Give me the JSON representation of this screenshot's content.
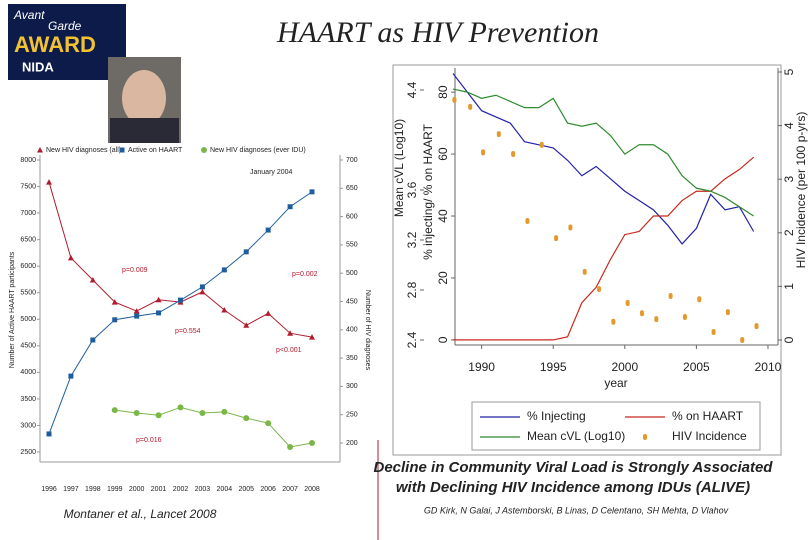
{
  "title": "HAART as HIV Prevention",
  "logo": {
    "line1": "Avant",
    "line2": "Garde",
    "line3": "AWARD",
    "line4": "NIDA"
  },
  "caption": [
    "Decline in Community Viral Load is Strongly Associated",
    "with Declining HIV Incidence among IDUs (ALIVE)"
  ],
  "authors": "GD Kirk, N Galai, J Astemborski, B Linas, D Celentano, SH Mehta, D Vlahov",
  "citation": "Montaner et al., Lancet 2008",
  "chart_data": [
    {
      "type": "line",
      "ylabel": "Number of Active HAART participants",
      "y2label": "Number of HIV diagnoses",
      "categories": [
        "1996",
        "1997",
        "1998",
        "1999",
        "2000",
        "2001",
        "2002",
        "2003",
        "2004",
        "2005",
        "2006",
        "2007",
        "2008"
      ],
      "ylim": [
        2500,
        8000
      ],
      "yticks": [
        2500,
        3000,
        3500,
        4000,
        4500,
        5000,
        5500,
        6000,
        6500,
        7000,
        7500,
        8000
      ],
      "y2lim": [
        200,
        700
      ],
      "y2ticks": [
        200,
        250,
        300,
        350,
        400,
        450,
        500,
        550,
        600,
        650,
        700
      ],
      "series": [
        {
          "name": "New HIV diagnoses (all)",
          "color": "#b01c2e",
          "axis": "y2",
          "marker": "triangle",
          "values": [
            661,
            527,
            488,
            449,
            433,
            453,
            449,
            467,
            435,
            408,
            429,
            394,
            387
          ]
        },
        {
          "name": "Active on HAART",
          "color": "#1f5e9e",
          "marker": "square",
          "values": [
            2840,
            3930,
            4610,
            4990,
            5060,
            5120,
            5360,
            5610,
            5930,
            6270,
            6680,
            7120,
            7400
          ]
        },
        {
          "name": "New HIV diagnoses (ever IDU)",
          "color": "#7ab648",
          "axis": "y2",
          "marker": "circle",
          "values": [
            null,
            null,
            null,
            258,
            253,
            249,
            263,
            253,
            255,
            244,
            235,
            193,
            200
          ]
        }
      ],
      "annotations": [
        "January 2004",
        "p=0.009",
        "p=0.002",
        "p=0.554",
        "p<0.001",
        "p=0.016"
      ]
    },
    {
      "type": "line",
      "xlabel": "year",
      "ylabel": "% injecting/ % on HAART",
      "y3label": "Mean cVL (Log10)",
      "y2label": "HIV Incidence (per 100 p-yrs)",
      "xlim": [
        1988.14,
        2010.7
      ],
      "xticks": [
        1990,
        1995,
        2000,
        2005,
        2010
      ],
      "ylim": [
        -1,
        86.5
      ],
      "yticks": [
        0,
        20,
        40,
        60,
        80
      ],
      "y2lim": [
        -0.056,
        5
      ],
      "y2ticks": [
        0,
        1,
        2,
        3,
        4,
        5
      ],
      "y3lim": [
        2.376,
        4.544
      ],
      "y3ticks": [
        2.4,
        2.8,
        3.2,
        3.6,
        4.4
      ],
      "x": [
        1988,
        1989,
        1990,
        1991,
        1992,
        1993,
        1994,
        1995,
        1996,
        1997,
        1998,
        1999,
        2000,
        2001,
        2002,
        2003,
        2004,
        2005,
        2006,
        2007,
        2008,
        2009
      ],
      "series": [
        {
          "name": "% Injecting",
          "color": "#2323a8",
          "values": [
            86,
            80,
            74,
            72,
            70,
            64,
            63,
            62,
            58,
            53,
            56,
            52,
            48,
            45,
            42,
            37,
            31,
            36,
            47,
            42,
            43,
            35
          ]
        },
        {
          "name": "% on HAART",
          "color": "#c8281e",
          "values": [
            0,
            0,
            0,
            0,
            0,
            0,
            0,
            0,
            1,
            12,
            17,
            26,
            34,
            35,
            40,
            40,
            45,
            48,
            48,
            52,
            55,
            59
          ]
        },
        {
          "name": "Mean cVL (Log10)",
          "color": "#2e8b2e",
          "values": [
            81,
            80,
            78,
            79,
            77,
            75,
            75,
            78,
            70,
            69,
            70,
            66,
            60,
            63,
            63,
            60,
            53,
            49,
            48,
            46,
            43,
            40
          ]
        },
        {
          "name": "HIV Incidence",
          "color": "#e39a2d",
          "type": "scatter",
          "axis": "y2",
          "x": [
            1988.1,
            1989.2,
            1990.1,
            1991.2,
            1992.2,
            1993.2,
            1994.2,
            1995.2,
            1996.2,
            1997.2,
            1998.2,
            1999.2,
            2000.2,
            2001.2,
            2002.2,
            2003.2,
            2004.2,
            2005.2,
            2006.2,
            2007.2,
            2008.2,
            2009.2
          ],
          "values": [
            4.48,
            4.35,
            3.5,
            3.84,
            3.47,
            2.22,
            3.64,
            1.9,
            2.1,
            1.27,
            0.95,
            0.34,
            0.69,
            0.5,
            0.39,
            0.82,
            0.43,
            0.76,
            0.15,
            0.52,
            0,
            0.26
          ]
        }
      ]
    }
  ]
}
